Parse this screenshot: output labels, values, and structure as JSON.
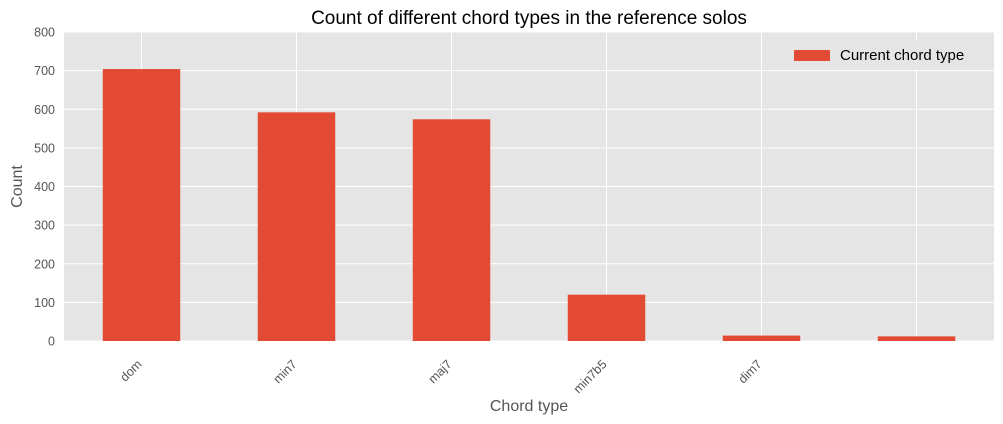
{
  "chart_data": {
    "type": "bar",
    "title": "Count of different chord types in the reference solos",
    "xlabel": "Chord type",
    "ylabel": "Count",
    "categories": [
      "dom",
      "min7",
      "maj7",
      "min7b5",
      "dim7",
      ""
    ],
    "series": [
      {
        "name": "Current chord type",
        "values": [
          704,
          592,
          574,
          120,
          14,
          12
        ],
        "color": "#E24A33"
      }
    ],
    "ylim": [
      0,
      800
    ],
    "yticks": [
      0,
      100,
      200,
      300,
      400,
      500,
      600,
      700,
      800
    ],
    "grid": true,
    "legend": "top-right",
    "colors": {
      "plot_bg": "#E5E5E5",
      "grid": "#FFFFFF"
    }
  }
}
